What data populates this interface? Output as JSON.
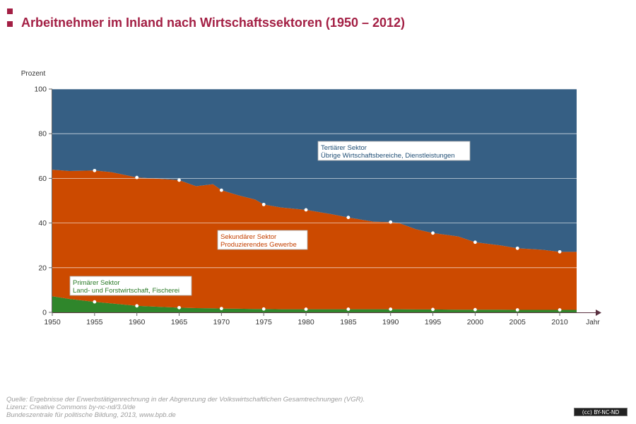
{
  "header": {
    "title": "Arbeitnehmer im Inland nach Wirtschaftssektoren (1950 – 2012)"
  },
  "chart_data": {
    "type": "area",
    "stacked": true,
    "ylabel": "Prozent",
    "xlabel": "Jahr",
    "xlim": [
      1950,
      2012
    ],
    "ylim": [
      0,
      100
    ],
    "x_ticks": [
      1950,
      1955,
      1960,
      1965,
      1970,
      1975,
      1980,
      1985,
      1990,
      1995,
      2000,
      2005,
      2010
    ],
    "y_ticks": [
      0,
      20,
      40,
      60,
      80,
      100
    ],
    "grid": true,
    "x": [
      1950,
      1952,
      1955,
      1957,
      1960,
      1963,
      1965,
      1967,
      1969,
      1970,
      1972,
      1974,
      1975,
      1977,
      1980,
      1983,
      1985,
      1988,
      1990,
      1991,
      1993,
      1995,
      1998,
      2000,
      2003,
      2005,
      2008,
      2010,
      2012
    ],
    "series": [
      {
        "name": "Primärer Sektor\nLand- und Forstwirtschaft, Fischerei",
        "color": "#2f862b",
        "values": [
          7.2,
          6.0,
          4.7,
          4.0,
          2.9,
          2.4,
          2.1,
          1.9,
          1.8,
          1.7,
          1.6,
          1.5,
          1.5,
          1.4,
          1.4,
          1.4,
          1.4,
          1.4,
          1.4,
          1.4,
          1.3,
          1.3,
          1.2,
          1.2,
          1.2,
          1.1,
          1.1,
          1.1,
          1.1
        ],
        "markers": [
          [
            1955,
            4.7
          ],
          [
            1960,
            2.9
          ],
          [
            1965,
            2.1
          ],
          [
            1970,
            1.7
          ],
          [
            1975,
            1.5
          ],
          [
            1980,
            1.4
          ],
          [
            1985,
            1.4
          ],
          [
            1990,
            1.4
          ],
          [
            1995,
            1.3
          ],
          [
            2000,
            1.2
          ],
          [
            2005,
            1.1
          ],
          [
            2010,
            1.1
          ]
        ]
      },
      {
        "name": "Sekundärer Sektor\nProduzierendes Gewerbe",
        "color": "#cc4a00",
        "values": [
          56.7,
          57.3,
          58.8,
          58.8,
          57.5,
          57.3,
          57.1,
          54.6,
          55.6,
          53.0,
          50.8,
          49.0,
          46.8,
          45.6,
          44.5,
          42.6,
          41.1,
          39.2,
          39.0,
          38.6,
          35.9,
          34.2,
          32.8,
          30.2,
          28.8,
          27.6,
          26.9,
          26.0,
          26.0
        ],
        "markers": [
          [
            1955,
            63.5
          ],
          [
            1960,
            60.4
          ],
          [
            1965,
            59.2
          ],
          [
            1970,
            54.7
          ],
          [
            1975,
            48.3
          ],
          [
            1980,
            45.9
          ],
          [
            1985,
            42.5
          ],
          [
            1990,
            40.4
          ],
          [
            1995,
            35.5
          ],
          [
            2000,
            31.4
          ],
          [
            2005,
            28.7
          ],
          [
            2010,
            27.1
          ]
        ]
      },
      {
        "name": "Tertiärer Sektor\nÜbrige Wirtschaftsbereiche, Dienstleistungen",
        "color": "#365f84",
        "values": [
          36.1,
          36.7,
          36.5,
          37.2,
          39.6,
          40.3,
          40.8,
          43.5,
          42.6,
          45.3,
          47.6,
          49.5,
          51.7,
          53.0,
          54.1,
          56.0,
          57.5,
          59.4,
          59.6,
          60.0,
          62.8,
          64.5,
          66.0,
          68.6,
          70.0,
          71.3,
          72.0,
          72.9,
          72.9
        ]
      }
    ]
  },
  "annotations": {
    "tertiaer": [
      "Tertiärer Sektor",
      "Übrige Wirtschaftsbereiche, Dienstleistungen"
    ],
    "sekundaer": [
      "Sekundärer Sektor",
      "Produzierendes Gewerbe"
    ],
    "primaer": [
      "Primärer Sektor",
      "Land- und Forstwirtschaft, Fischerei"
    ]
  },
  "footer": {
    "source": "Quelle: Ergebnisse der Erwerbstätigenrechnung in der Abgrenzung der Volkswirtschaftlichen Gesamtrechnungen (VGR).",
    "license": "Lizenz: Creative Commons by-nc-nd/3.0/de",
    "publisher": "Bundeszentrale für politische Bildung, 2013, www.bpb.de",
    "badge": "(cc) BY-NC-ND"
  }
}
